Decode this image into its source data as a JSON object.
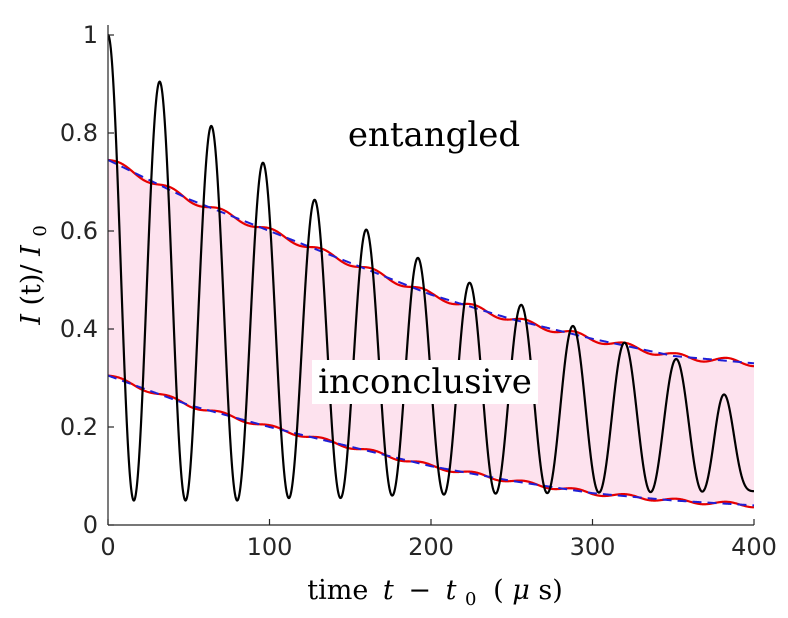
{
  "chart_data": {
    "type": "line",
    "xlabel_parts": [
      "time",
      "t",
      "−",
      "t",
      "0",
      "(",
      "μ",
      "s)"
    ],
    "ylabel_parts": [
      "I",
      "(t)/",
      "I",
      "0"
    ],
    "xlim": [
      0,
      400
    ],
    "ylim": [
      0,
      1
    ],
    "xticks": [
      0,
      100,
      200,
      300,
      400
    ],
    "yticks": [
      0,
      0.2,
      0.4,
      0.6,
      0.8,
      1
    ],
    "ytick_labels": [
      "0",
      "0.2",
      "0.4",
      "0.6",
      "0.8",
      "1"
    ],
    "grid": false,
    "annotations": {
      "upper": "entangled",
      "middle": "inconclusive"
    },
    "colors": {
      "signal": "#000000",
      "bound_smooth": "#e60000",
      "bound_fit": "#1f1fd6",
      "region_fill": "#fde2ee"
    },
    "series": [
      {
        "role": "signal",
        "x": [
          0,
          16,
          31,
          47,
          62,
          78,
          94,
          109,
          125,
          141,
          156,
          172,
          187,
          203,
          219,
          234,
          250,
          266,
          281,
          297,
          312,
          328,
          344,
          359,
          375,
          390,
          400
        ],
        "values": [
          1.0,
          0.05,
          0.905,
          0.05,
          0.815,
          0.05,
          0.74,
          0.055,
          0.665,
          0.055,
          0.605,
          0.06,
          0.548,
          0.062,
          0.497,
          0.064,
          0.453,
          0.065,
          0.41,
          0.066,
          0.377,
          0.067,
          0.343,
          0.068,
          0.315,
          0.069,
          0.085
        ]
      },
      {
        "role": "upper-bound",
        "x": [
          0,
          50,
          100,
          150,
          200,
          250,
          300,
          350,
          400
        ],
        "values": [
          0.745,
          0.665,
          0.6,
          0.535,
          0.47,
          0.42,
          0.38,
          0.345,
          0.33
        ]
      },
      {
        "role": "lower-bound",
        "x": [
          0,
          50,
          100,
          150,
          200,
          250,
          300,
          350,
          400
        ],
        "values": [
          0.305,
          0.245,
          0.2,
          0.16,
          0.12,
          0.09,
          0.065,
          0.05,
          0.04
        ]
      }
    ]
  }
}
